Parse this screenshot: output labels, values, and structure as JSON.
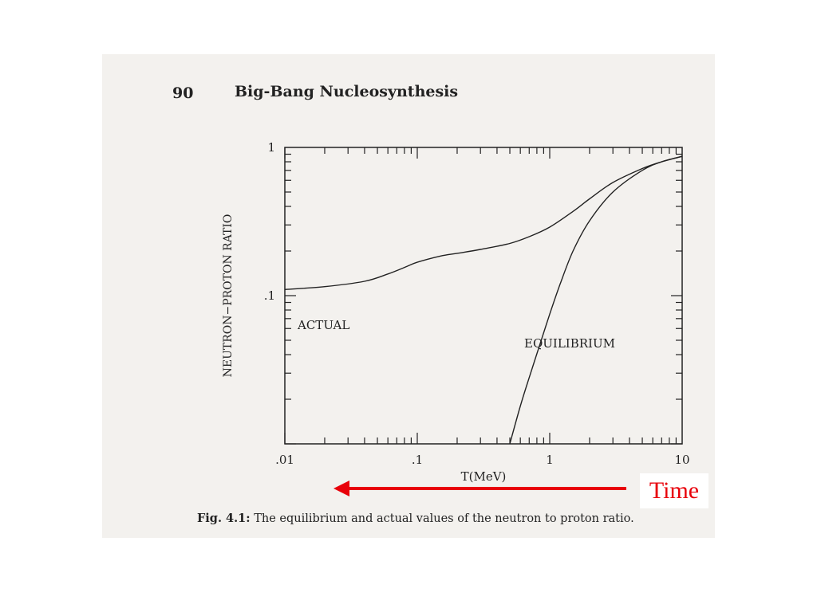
{
  "page": {
    "page_number": "90",
    "running_title": "Big-Bang Nucleosynthesis",
    "caption_prefix": "Fig. 4.1:",
    "caption_text": "The equilibrium and actual values of the neutron to proton ratio."
  },
  "annotation": {
    "label": "Time",
    "color": "#e8000a",
    "arrow_direction": "left"
  },
  "chart_data": {
    "type": "line",
    "xlabel": "T(MeV)",
    "ylabel": "NEUTRON−PROTON  RATIO",
    "xscale": "log",
    "yscale": "log",
    "xlim": [
      0.01,
      10
    ],
    "ylim": [
      0.01,
      1
    ],
    "x_ticklabels": [
      ".01",
      ".1",
      "1",
      "10"
    ],
    "y_ticklabels": [
      ".1",
      "1"
    ],
    "grid": false,
    "series": [
      {
        "name": "ACTUAL",
        "x": [
          0.01,
          0.02,
          0.04,
          0.06,
          0.08,
          0.1,
          0.15,
          0.2,
          0.3,
          0.5,
          0.7,
          1.0,
          1.5,
          2.0,
          3.0,
          5.0,
          7.0,
          10.0
        ],
        "y": [
          0.11,
          0.115,
          0.125,
          0.14,
          0.155,
          0.168,
          0.185,
          0.193,
          0.205,
          0.225,
          0.25,
          0.29,
          0.37,
          0.45,
          0.58,
          0.72,
          0.8,
          0.87
        ]
      },
      {
        "name": "EQUILIBRIUM",
        "x": [
          0.5,
          0.6,
          0.7,
          0.85,
          1.0,
          1.2,
          1.5,
          2.0,
          3.0,
          5.0,
          7.0,
          10.0
        ],
        "y": [
          0.01,
          0.018,
          0.028,
          0.048,
          0.075,
          0.12,
          0.2,
          0.32,
          0.5,
          0.7,
          0.8,
          0.87
        ]
      }
    ]
  }
}
